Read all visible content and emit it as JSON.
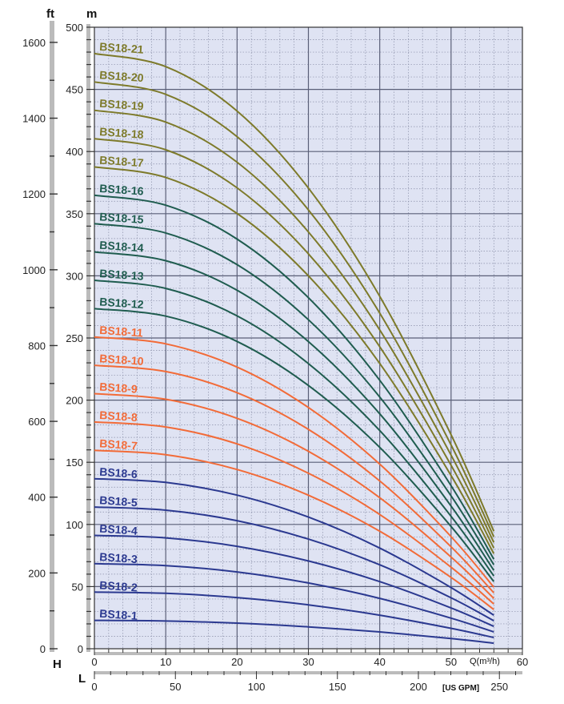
{
  "chart_data": {
    "type": "line",
    "title": "",
    "ft_axis": {
      "label": "ft",
      "letter": "H",
      "range": [
        0,
        1640
      ],
      "ticks": [
        0,
        200,
        400,
        600,
        800,
        1000,
        1200,
        1400,
        1600
      ]
    },
    "m_axis": {
      "label": "m",
      "range": [
        0,
        500
      ],
      "ticks": [
        0,
        50,
        100,
        150,
        200,
        250,
        300,
        350,
        400,
        450,
        500
      ]
    },
    "q_axis": {
      "label": "Q(m³/h)",
      "range": [
        0,
        60
      ],
      "ticks": [
        0,
        10,
        20,
        30,
        40,
        50,
        60
      ]
    },
    "gpm_axis": {
      "label": "[US GPM]",
      "letter": "L",
      "range": [
        0,
        264.2
      ],
      "ticks": [
        0,
        50,
        100,
        150,
        200,
        250
      ]
    },
    "grid": true,
    "series": [
      {
        "name": "BS18-1",
        "color": "#2b3990",
        "x": [
          0,
          10,
          20,
          30,
          40,
          50,
          56
        ],
        "y": [
          22.8,
          22.3,
          20.6,
          17.6,
          13.5,
          8.2,
          4.5
        ]
      },
      {
        "name": "BS18-2",
        "color": "#2b3990",
        "x": [
          0,
          10,
          20,
          30,
          40,
          50,
          56
        ],
        "y": [
          45.6,
          44.6,
          41.2,
          35.3,
          27.0,
          16.4,
          9.0
        ]
      },
      {
        "name": "BS18-3",
        "color": "#2b3990",
        "x": [
          0,
          10,
          20,
          30,
          40,
          50,
          56
        ],
        "y": [
          68.4,
          66.9,
          61.8,
          52.9,
          40.5,
          24.6,
          13.5
        ]
      },
      {
        "name": "BS18-4",
        "color": "#2b3990",
        "x": [
          0,
          10,
          20,
          30,
          40,
          50,
          56
        ],
        "y": [
          91.2,
          89.2,
          82.4,
          70.6,
          54.0,
          32.8,
          18.0
        ]
      },
      {
        "name": "BS18-5",
        "color": "#2b3990",
        "x": [
          0,
          10,
          20,
          30,
          40,
          50,
          56
        ],
        "y": [
          114.0,
          111.5,
          103.0,
          88.2,
          67.5,
          41.0,
          22.5
        ]
      },
      {
        "name": "BS18-6",
        "color": "#2b3990",
        "x": [
          0,
          10,
          20,
          30,
          40,
          50,
          56
        ],
        "y": [
          136.8,
          133.8,
          123.6,
          105.9,
          81.0,
          49.2,
          27.0
        ]
      },
      {
        "name": "BS18-7",
        "color": "#f26b38",
        "x": [
          0,
          10,
          20,
          30,
          40,
          50,
          56
        ],
        "y": [
          159.6,
          156.1,
          144.2,
          123.5,
          94.5,
          57.4,
          31.5
        ]
      },
      {
        "name": "BS18-8",
        "color": "#f26b38",
        "x": [
          0,
          10,
          20,
          30,
          40,
          50,
          56
        ],
        "y": [
          182.4,
          178.4,
          164.8,
          141.2,
          108.0,
          65.6,
          36.0
        ]
      },
      {
        "name": "BS18-9",
        "color": "#f26b38",
        "x": [
          0,
          10,
          20,
          30,
          40,
          50,
          56
        ],
        "y": [
          205.2,
          200.7,
          185.4,
          158.8,
          121.5,
          73.8,
          40.5
        ]
      },
      {
        "name": "BS18-10",
        "color": "#f26b38",
        "x": [
          0,
          10,
          20,
          30,
          40,
          50,
          56
        ],
        "y": [
          228.0,
          223.0,
          206.0,
          176.5,
          135.0,
          82.0,
          45.0
        ]
      },
      {
        "name": "BS18-11",
        "color": "#f26b38",
        "x": [
          0,
          10,
          20,
          30,
          40,
          50,
          56
        ],
        "y": [
          250.8,
          245.3,
          226.6,
          194.1,
          148.5,
          90.2,
          49.5
        ]
      },
      {
        "name": "BS18-12",
        "color": "#1f5c4f",
        "x": [
          0,
          10,
          20,
          30,
          40,
          50,
          56
        ],
        "y": [
          273.6,
          267.6,
          247.2,
          211.8,
          162.0,
          98.4,
          54.0
        ]
      },
      {
        "name": "BS18-13",
        "color": "#1f5c4f",
        "x": [
          0,
          10,
          20,
          30,
          40,
          50,
          56
        ],
        "y": [
          296.4,
          289.9,
          267.8,
          229.4,
          175.5,
          106.6,
          58.5
        ]
      },
      {
        "name": "BS18-14",
        "color": "#1f5c4f",
        "x": [
          0,
          10,
          20,
          30,
          40,
          50,
          56
        ],
        "y": [
          319.2,
          312.2,
          288.4,
          247.1,
          189.0,
          114.8,
          63.0
        ]
      },
      {
        "name": "BS18-15",
        "color": "#1f5c4f",
        "x": [
          0,
          10,
          20,
          30,
          40,
          50,
          56
        ],
        "y": [
          342.0,
          334.5,
          309.0,
          264.7,
          202.5,
          123.0,
          67.5
        ]
      },
      {
        "name": "BS18-16",
        "color": "#1f5c4f",
        "x": [
          0,
          10,
          20,
          30,
          40,
          50,
          56
        ],
        "y": [
          364.8,
          356.8,
          329.6,
          282.4,
          216.0,
          131.2,
          72.0
        ]
      },
      {
        "name": "BS18-17",
        "color": "#7d7a2a",
        "x": [
          0,
          10,
          20,
          30,
          40,
          50,
          56
        ],
        "y": [
          387.6,
          379.1,
          350.2,
          300.0,
          229.5,
          139.4,
          76.5
        ]
      },
      {
        "name": "BS18-18",
        "color": "#7d7a2a",
        "x": [
          0,
          10,
          20,
          30,
          40,
          50,
          56
        ],
        "y": [
          410.4,
          401.4,
          370.8,
          317.7,
          243.0,
          147.6,
          81.0
        ]
      },
      {
        "name": "BS18-19",
        "color": "#7d7a2a",
        "x": [
          0,
          10,
          20,
          30,
          40,
          50,
          56
        ],
        "y": [
          433.2,
          423.7,
          391.4,
          335.3,
          256.5,
          155.8,
          85.5
        ]
      },
      {
        "name": "BS18-20",
        "color": "#7d7a2a",
        "x": [
          0,
          10,
          20,
          30,
          40,
          50,
          56
        ],
        "y": [
          456.0,
          446.0,
          412.0,
          353.0,
          270.0,
          164.0,
          90.0
        ]
      },
      {
        "name": "BS18-21",
        "color": "#7d7a2a",
        "x": [
          0,
          10,
          20,
          30,
          40,
          50,
          56
        ],
        "y": [
          478.8,
          468.3,
          432.6,
          370.6,
          283.5,
          172.2,
          94.5
        ]
      }
    ]
  },
  "colors": {
    "plot_bg": "#dfe3f3",
    "grid_major": "#5a5f78",
    "grid_minor": "#8a8fa8",
    "axis_bar": "#bbbbbb"
  }
}
